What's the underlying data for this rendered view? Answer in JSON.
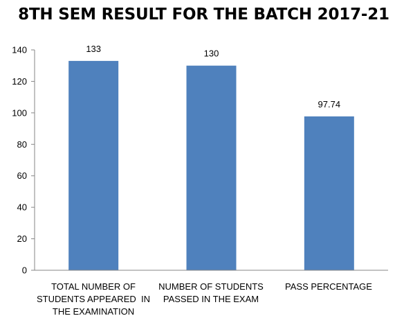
{
  "chart_data": {
    "type": "bar",
    "title": "8TH SEM RESULT FOR THE BATCH 2017-21",
    "xlabel": "",
    "ylabel": "",
    "categories": [
      "TOTAL NUMBER OF STUDENTS APPEARED  IN THE EXAMINATION",
      "NUMBER OF STUDENTS PASSED IN THE EXAM",
      "PASS PERCENTAGE"
    ],
    "category_lines": [
      [
        "TOTAL NUMBER OF",
        "STUDENTS APPEARED  IN",
        "THE EXAMINATION"
      ],
      [
        "NUMBER OF STUDENTS",
        "PASSED IN THE EXAM"
      ],
      [
        "PASS PERCENTAGE"
      ]
    ],
    "values": [
      133,
      130,
      97.74
    ],
    "data_labels": [
      "133",
      "130",
      "97.74"
    ],
    "ylim": [
      0,
      140
    ],
    "yticks": [
      0,
      20,
      40,
      60,
      80,
      100,
      120,
      140
    ],
    "grid": false,
    "legend": "none",
    "bar_color": "#4F81BD"
  }
}
